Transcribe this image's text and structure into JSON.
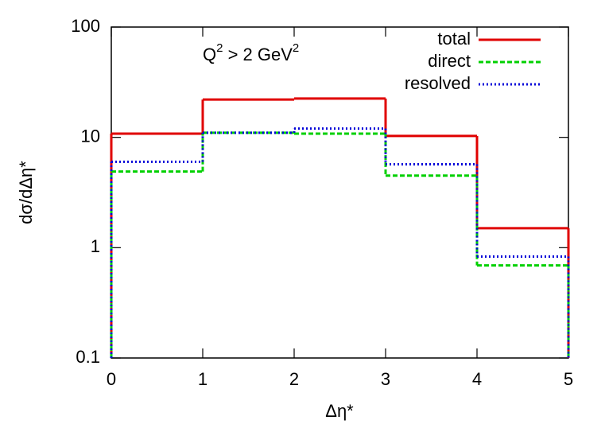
{
  "chart_data": {
    "type": "histogram",
    "annotation": [
      "Q",
      "2",
      " > 2 GeV",
      "2"
    ],
    "xlabel": "Δη*",
    "ylabel": "dσ/dΔη*",
    "bins": [
      0,
      1,
      2,
      3,
      4,
      5
    ],
    "series": [
      {
        "name": "total",
        "color": "#e00000",
        "dash": "solid",
        "values": [
          10.8,
          22,
          22.5,
          10.3,
          1.5
        ]
      },
      {
        "name": "direct",
        "color": "#00d000",
        "dash": "dashed",
        "values": [
          4.9,
          11,
          10.8,
          4.5,
          0.69
        ]
      },
      {
        "name": "resolved",
        "color": "#0000d8",
        "dash": "dotted",
        "values": [
          6,
          11,
          12,
          5.7,
          0.83
        ]
      }
    ],
    "xlim": [
      0,
      5
    ],
    "xticks": [
      0,
      1,
      2,
      3,
      4,
      5
    ],
    "ylim": [
      0.1,
      100
    ],
    "yticks": [
      0.1,
      1,
      10,
      100
    ],
    "log_y": true,
    "legend": "upper right"
  }
}
